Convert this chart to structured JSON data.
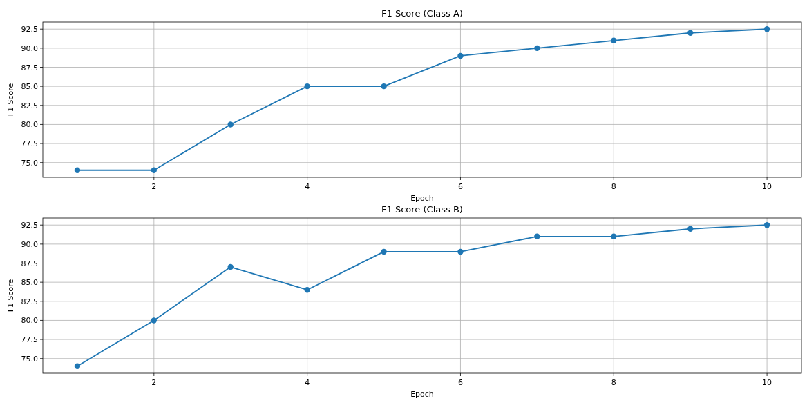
{
  "chart_data": [
    {
      "type": "line",
      "title": "F1 Score (Class A)",
      "xlabel": "Epoch",
      "ylabel": "F1 Score",
      "x": [
        1,
        2,
        3,
        4,
        5,
        6,
        7,
        8,
        9,
        10
      ],
      "series": [
        {
          "color": "#1f77b4",
          "values": [
            74,
            74,
            80,
            85,
            85,
            89,
            90,
            91,
            92,
            92.5
          ]
        }
      ],
      "xlim": [
        0.55,
        10.45
      ],
      "xticks": [
        2,
        4,
        6,
        8,
        10
      ],
      "ylim": [
        73.075,
        93.425
      ],
      "yticks": [
        {
          "value": 75,
          "label": "75.0"
        },
        {
          "value": 77.5,
          "label": "77.5"
        },
        {
          "value": 80,
          "label": "80.0"
        },
        {
          "value": 82.5,
          "label": "82.5"
        },
        {
          "value": 85,
          "label": "85.0"
        },
        {
          "value": 87.5,
          "label": "87.5"
        },
        {
          "value": 90,
          "label": "90.0"
        },
        {
          "value": 92.5,
          "label": "92.5"
        }
      ],
      "grid": true,
      "marker": "circle",
      "line_style": "solid"
    },
    {
      "type": "line",
      "title": "F1 Score (Class B)",
      "xlabel": "Epoch",
      "ylabel": "F1 Score",
      "x": [
        1,
        2,
        3,
        4,
        5,
        6,
        7,
        8,
        9,
        10
      ],
      "series": [
        {
          "color": "#1f77b4",
          "values": [
            74,
            80,
            87,
            84,
            89,
            89,
            91,
            91,
            92,
            92.5
          ]
        }
      ],
      "xlim": [
        0.55,
        10.45
      ],
      "xticks": [
        2,
        4,
        6,
        8,
        10
      ],
      "ylim": [
        73.075,
        93.425
      ],
      "yticks": [
        {
          "value": 75,
          "label": "75.0"
        },
        {
          "value": 77.5,
          "label": "77.5"
        },
        {
          "value": 80,
          "label": "80.0"
        },
        {
          "value": 82.5,
          "label": "82.5"
        },
        {
          "value": 85,
          "label": "85.0"
        },
        {
          "value": 87.5,
          "label": "87.5"
        },
        {
          "value": 90,
          "label": "90.0"
        },
        {
          "value": 92.5,
          "label": "92.5"
        }
      ],
      "grid": true,
      "marker": "circle",
      "line_style": "solid"
    }
  ]
}
